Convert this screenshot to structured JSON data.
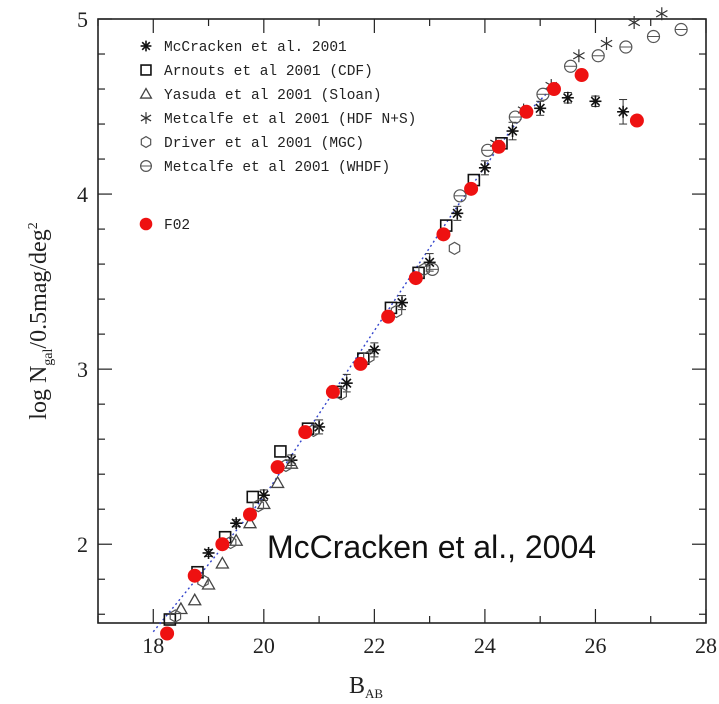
{
  "chart_data": {
    "type": "scatter",
    "xlabel": "B",
    "xlabel_sub": "AB",
    "ylabel_parts": [
      "log N",
      "gal",
      "/0.5mag/deg",
      "2"
    ],
    "xlim": [
      17,
      28
    ],
    "ylim": [
      1.55,
      5.0
    ],
    "xticks": [
      18,
      20,
      22,
      24,
      26,
      28
    ],
    "yticks": [
      2,
      3,
      4,
      5
    ],
    "citation": "McCracken et al., 2004",
    "legend_position": "top-left",
    "colors": {
      "f02": "#ee1111",
      "black": "#111111",
      "fit": "#3344cc"
    },
    "fit_line": {
      "x": [
        18.0,
        20.0,
        22.0,
        23.5,
        24.5,
        25.2
      ],
      "y": [
        1.5,
        2.27,
        3.22,
        3.93,
        4.38,
        4.6
      ]
    },
    "series": [
      {
        "name": "McCracken et al. 2001",
        "marker": "asterisk",
        "x": [
          19.0,
          19.5,
          20.0,
          20.5,
          21.0,
          21.5,
          22.0,
          22.5,
          23.0,
          23.5,
          24.0,
          24.5,
          25.0,
          25.5,
          26.0,
          26.5
        ],
        "y": [
          1.95,
          2.12,
          2.28,
          2.48,
          2.67,
          2.92,
          3.11,
          3.38,
          3.61,
          3.89,
          4.15,
          4.36,
          4.49,
          4.55,
          4.53,
          4.47
        ],
        "err": [
          0.02,
          0.02,
          0.03,
          0.03,
          0.04,
          0.05,
          0.04,
          0.04,
          0.05,
          0.04,
          0.04,
          0.05,
          0.04,
          0.03,
          0.03,
          0.07
        ]
      },
      {
        "name": "Arnouts et al 2001 (CDF)",
        "marker": "square",
        "x": [
          18.3,
          18.8,
          19.3,
          19.8,
          20.3,
          20.8,
          21.3,
          21.8,
          22.3,
          22.8,
          23.3,
          23.8,
          24.3
        ],
        "y": [
          1.57,
          1.84,
          2.04,
          2.27,
          2.53,
          2.66,
          2.87,
          3.06,
          3.35,
          3.55,
          3.82,
          4.08,
          4.29
        ]
      },
      {
        "name": "Yasuda et al 2001 (Sloan)",
        "marker": "triangle",
        "x": [
          18.5,
          18.75,
          19.0,
          19.25,
          19.5,
          19.75,
          20.0,
          20.25,
          20.5
        ],
        "y": [
          1.63,
          1.68,
          1.77,
          1.89,
          2.02,
          2.12,
          2.23,
          2.35,
          2.46
        ]
      },
      {
        "name": "Metcalfe et al 2001 (HDF N+S)",
        "marker": "star",
        "x": [
          24.2,
          24.7,
          25.2,
          25.7,
          26.2,
          26.7,
          27.2
        ],
        "y": [
          4.29,
          4.48,
          4.62,
          4.79,
          4.86,
          4.98,
          5.03
        ]
      },
      {
        "name": "Driver et al 2001 (MGC)",
        "marker": "hexagon",
        "x": [
          18.4,
          18.9,
          19.4,
          19.9,
          20.4,
          20.9,
          21.4,
          21.9,
          22.4,
          22.9,
          23.45
        ],
        "y": [
          1.59,
          1.79,
          2.01,
          2.22,
          2.45,
          2.65,
          2.86,
          3.07,
          3.33,
          3.57,
          3.69
        ]
      },
      {
        "name": "Metcalfe et al 2001 (WHDF)",
        "marker": "circle",
        "x": [
          23.05,
          23.55,
          24.05,
          24.55,
          25.05,
          25.55,
          26.05,
          26.55,
          27.05,
          27.55
        ],
        "y": [
          3.57,
          3.99,
          4.25,
          4.44,
          4.57,
          4.73,
          4.79,
          4.84,
          4.9,
          4.94
        ]
      },
      {
        "name": "F02",
        "marker": "dot",
        "x": [
          18.25,
          18.75,
          19.25,
          19.75,
          20.25,
          20.75,
          21.25,
          21.75,
          22.25,
          22.75,
          23.25,
          23.75,
          24.25,
          24.75,
          25.25,
          25.75,
          26.75
        ],
        "y": [
          1.49,
          1.82,
          2.0,
          2.17,
          2.44,
          2.64,
          2.87,
          3.03,
          3.3,
          3.52,
          3.77,
          4.03,
          4.27,
          4.47,
          4.6,
          4.68,
          4.42
        ]
      }
    ]
  }
}
